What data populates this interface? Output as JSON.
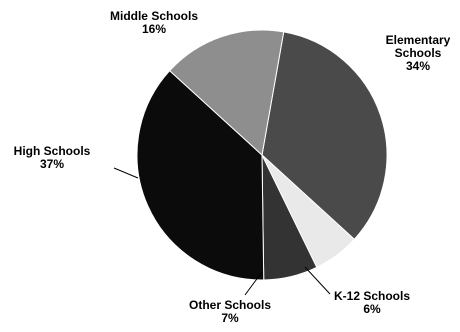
{
  "chart_data": {
    "type": "pie",
    "start_angle_deg": 90,
    "direction": "clockwise",
    "slices": [
      {
        "label": "Elementary Schools",
        "label_lines": [
          "Elementary",
          "Schools"
        ],
        "value": 34,
        "value_label": "34%",
        "color": "#4a4a4a"
      },
      {
        "label": "K-12 Schools",
        "label_lines": [
          "K-12 Schools"
        ],
        "value": 6,
        "value_label": "6%",
        "color": "#e9e9e9"
      },
      {
        "label": "Other Schools",
        "label_lines": [
          "Other Schools"
        ],
        "value": 7,
        "value_label": "7%",
        "color": "#333333"
      },
      {
        "label": "High Schools",
        "label_lines": [
          "High Schools"
        ],
        "value": 37,
        "value_label": "37%",
        "color": "#0b0b0b"
      },
      {
        "label": "Middle Schools",
        "label_lines": [
          "Middle Schools"
        ],
        "value": 16,
        "value_label": "16%",
        "color": "#8e8e8e"
      }
    ]
  }
}
